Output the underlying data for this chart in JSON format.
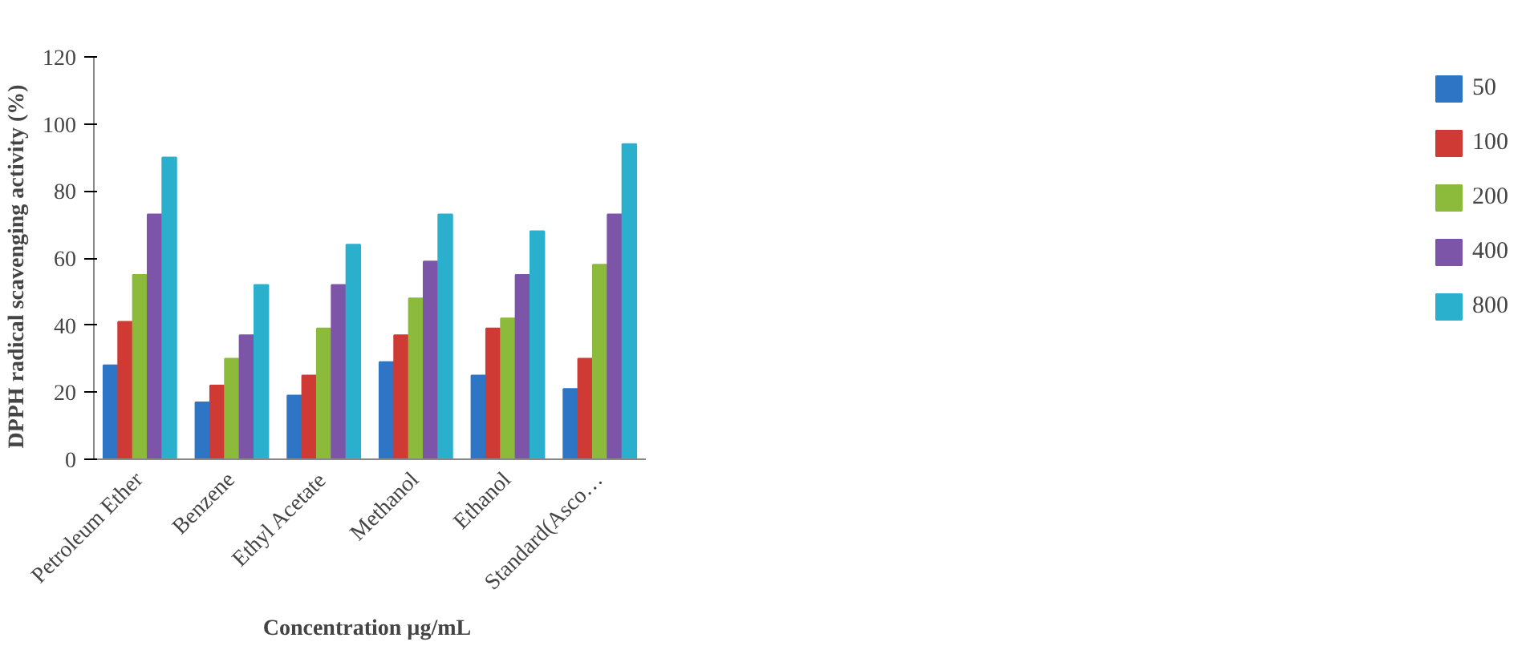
{
  "chart_data": {
    "type": "bar",
    "xlabel": "Concentration  µg/mL",
    "ylabel": "DPPH  radical  scavenging activity  (%)",
    "categories": [
      "Petroleum Ether",
      "Benzene",
      "Ethyl Acetate",
      "Methanol",
      "Ethanol",
      "Standard(Asco…"
    ],
    "series": [
      {
        "name": "50",
        "color": "#2e75c6",
        "values": [
          28,
          17,
          19,
          29,
          25,
          21
        ]
      },
      {
        "name": "100",
        "color": "#d03a34",
        "values": [
          41,
          22,
          25,
          37,
          39,
          30
        ]
      },
      {
        "name": "200",
        "color": "#8cba3a",
        "values": [
          55,
          30,
          39,
          48,
          42,
          58
        ]
      },
      {
        "name": "400",
        "color": "#7d55a8",
        "values": [
          73,
          37,
          52,
          59,
          55,
          73
        ]
      },
      {
        "name": "800",
        "color": "#2ab0cc",
        "values": [
          90,
          52,
          64,
          73,
          68,
          94
        ]
      }
    ],
    "ylim": [
      0,
      120
    ],
    "yticks": [
      0,
      20,
      40,
      60,
      80,
      100,
      120
    ],
    "grid": false,
    "legend": "right"
  }
}
